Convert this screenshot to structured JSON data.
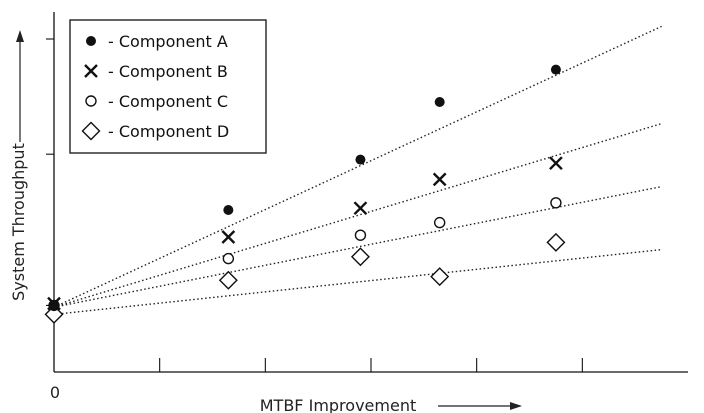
{
  "chart_data": {
    "type": "scatter",
    "title": "",
    "xlabel": "MTBF Improvement",
    "ylabel": "System Throughput",
    "x_tick_labels": [
      "0"
    ],
    "xlim": [
      0,
      6
    ],
    "ylim": [
      0,
      10
    ],
    "grid": false,
    "legend_position": "top-left",
    "series": [
      {
        "name": "- Component A",
        "marker": "filled-circle",
        "points": [
          [
            0,
            1.85
          ],
          [
            1.65,
            4.5
          ],
          [
            2.9,
            5.9
          ],
          [
            3.65,
            7.5
          ],
          [
            4.75,
            8.4
          ]
        ],
        "trend": [
          [
            0,
            1.8
          ],
          [
            5.75,
            9.6
          ]
        ]
      },
      {
        "name": "- Component B",
        "marker": "cross",
        "points": [
          [
            0,
            1.9
          ],
          [
            1.65,
            3.75
          ],
          [
            2.9,
            4.55
          ],
          [
            3.65,
            5.35
          ],
          [
            4.75,
            5.8
          ]
        ],
        "trend": [
          [
            0,
            1.8
          ],
          [
            5.75,
            6.9
          ]
        ]
      },
      {
        "name": "- Component C",
        "marker": "open-circle",
        "points": [
          [
            0,
            1.85
          ],
          [
            1.65,
            3.15
          ],
          [
            2.9,
            3.8
          ],
          [
            3.65,
            4.15
          ],
          [
            4.75,
            4.7
          ]
        ],
        "trend": [
          [
            0,
            1.8
          ],
          [
            5.75,
            5.15
          ]
        ]
      },
      {
        "name": "- Component D",
        "marker": "open-diamond",
        "points": [
          [
            0,
            1.6
          ],
          [
            1.65,
            2.55
          ],
          [
            2.9,
            3.2
          ],
          [
            3.65,
            2.65
          ],
          [
            4.75,
            3.6
          ]
        ],
        "trend": [
          [
            0,
            1.6
          ],
          [
            5.75,
            3.4
          ]
        ]
      }
    ]
  }
}
